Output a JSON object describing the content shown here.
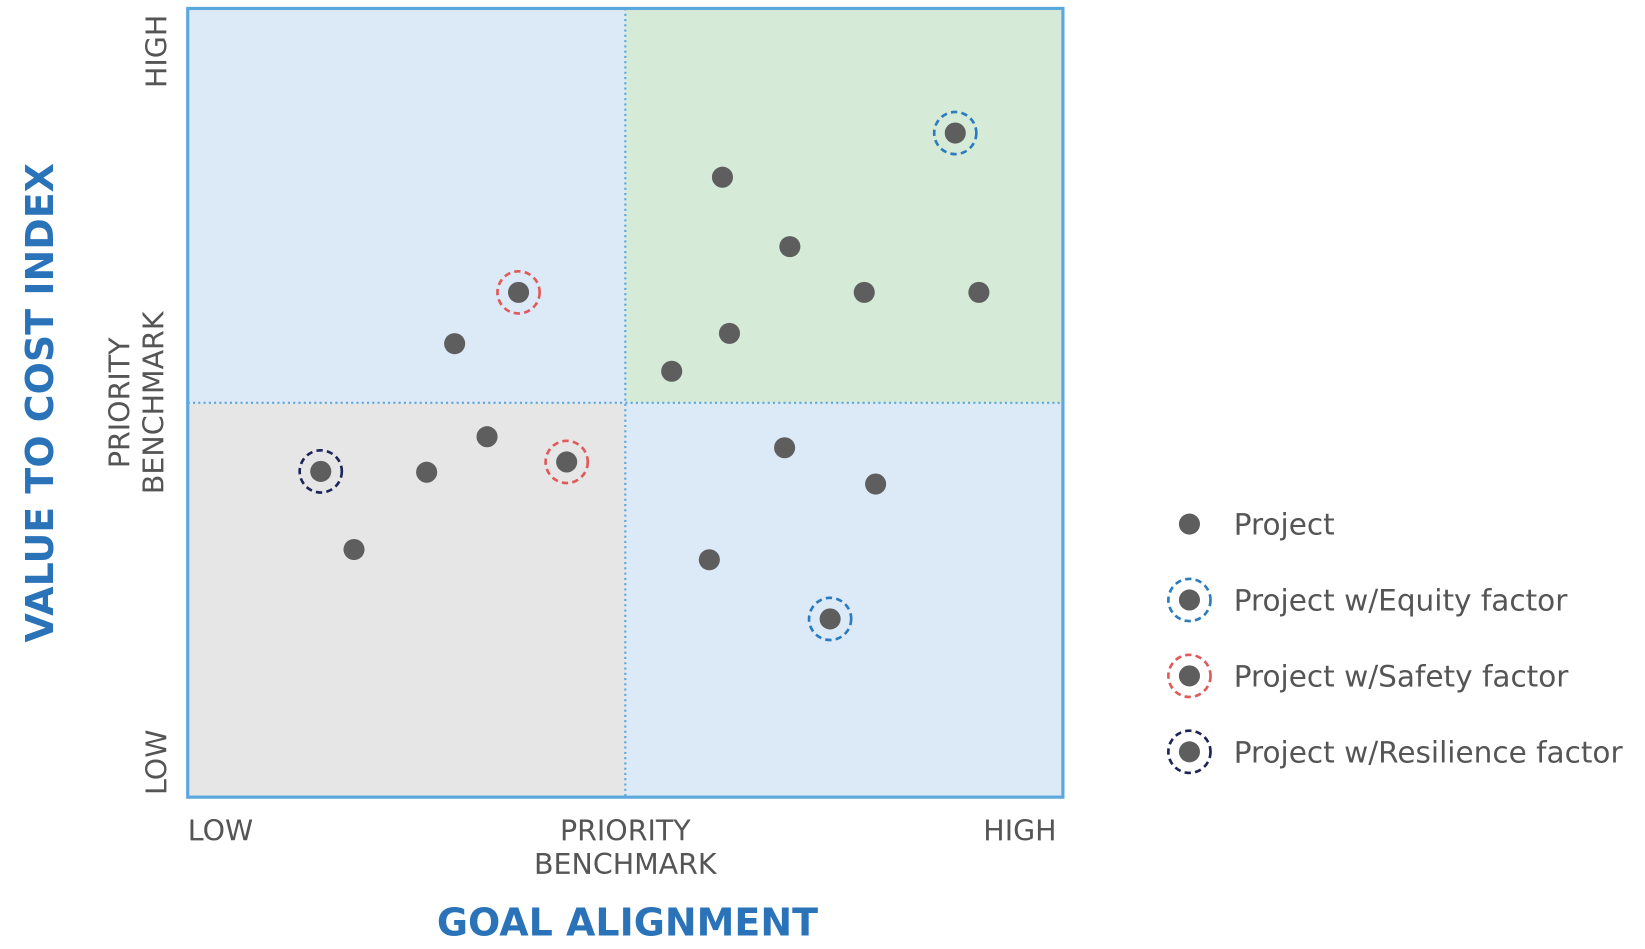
{
  "chart_data": {
    "type": "scatter",
    "x_label": "GOAL ALIGNMENT",
    "y_label": "VALUE TO COST INDEX",
    "xlim": [
      0,
      100
    ],
    "ylim": [
      0,
      100
    ],
    "xticks": [
      {
        "value": 0,
        "label": "LOW"
      },
      {
        "value": 50,
        "label": "PRIORITY BENCHMARK"
      },
      {
        "value": 100,
        "label": "HIGH"
      }
    ],
    "yticks": [
      {
        "value": 0,
        "label": "LOW"
      },
      {
        "value": 50,
        "label": "PRIORITY BENCHMARK"
      },
      {
        "value": 100,
        "label": "HIGH"
      }
    ],
    "quadrant_colors": {
      "top_left": "#dce9f6",
      "top_right": "#d6ead8",
      "bottom_left": "#e6e6e6",
      "bottom_right": "#dce9f6"
    },
    "border_color": "#5aa8dc",
    "point_color": "#5e5e5e",
    "series": [
      {
        "name": "Project",
        "color": "#5e5e5e",
        "ring": false,
        "x": [
          61.1,
          68.8,
          77.3,
          90.4,
          61.9,
          55.3,
          30.5,
          34.2,
          27.3,
          19.0,
          68.2,
          78.6,
          59.6
        ],
        "values": [
          78.6,
          69.8,
          64.0,
          64.0,
          58.8,
          54.0,
          57.5,
          45.7,
          41.2,
          31.4,
          44.3,
          39.7,
          30.1
        ]
      },
      {
        "name": "Project w/Equity factor",
        "color": "#2a7bbf",
        "ring": true,
        "x": [
          87.7,
          73.4
        ],
        "values": [
          84.2,
          22.6
        ]
      },
      {
        "name": "Project w/Safety factor",
        "color": "#e05a5a",
        "ring": true,
        "x": [
          37.8,
          43.3
        ],
        "values": [
          64.0,
          42.5
        ]
      },
      {
        "name": "Project w/Resilience factor",
        "color": "#1c2458",
        "ring": true,
        "x": [
          15.2
        ],
        "values": [
          41.3
        ]
      }
    ]
  }
}
